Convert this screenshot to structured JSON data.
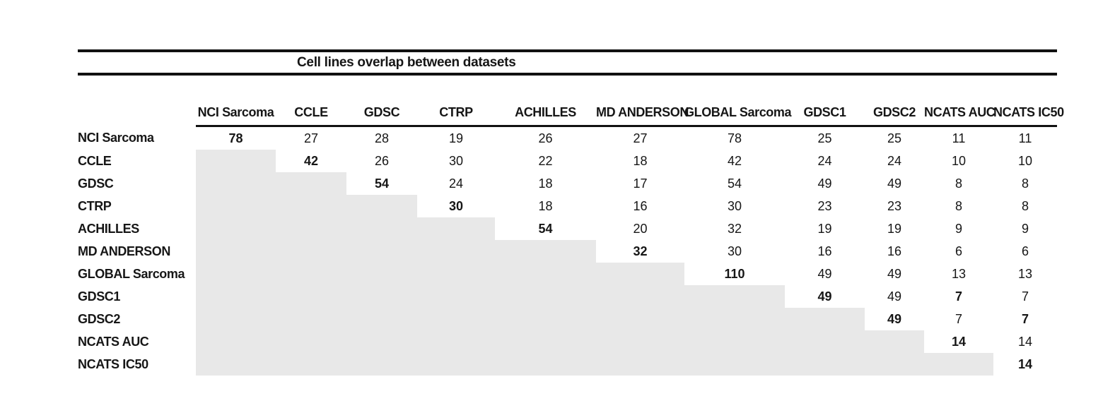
{
  "title": "Cell lines overlap between datasets",
  "colors": {
    "shade": "#e8e8e8",
    "rule": "#111111",
    "text": "#161616"
  },
  "table": {
    "corner_label": "",
    "columns": [
      "NCI Sarcoma",
      "CCLE",
      "GDSC",
      "CTRP",
      "ACHILLES",
      "MD ANDERSON",
      "GLOBAL Sarcoma",
      "GDSC1",
      "GDSC2",
      "NCATS AUC",
      "NCATS IC50"
    ],
    "rows": [
      {
        "label": "NCI Sarcoma",
        "values": [
          "78",
          "27",
          "28",
          "19",
          "26",
          "27",
          "78",
          "25",
          "25",
          "11",
          "11"
        ],
        "bold_cols": [
          0
        ]
      },
      {
        "label": "CCLE",
        "values": [
          "",
          "42",
          "26",
          "30",
          "22",
          "18",
          "42",
          "24",
          "24",
          "10",
          "10"
        ],
        "bold_cols": [
          1
        ]
      },
      {
        "label": "GDSC",
        "values": [
          "",
          "",
          "54",
          "24",
          "18",
          "17",
          "54",
          "49",
          "49",
          "8",
          "8"
        ],
        "bold_cols": [
          2
        ]
      },
      {
        "label": "CTRP",
        "values": [
          "",
          "",
          "",
          "30",
          "18",
          "16",
          "30",
          "23",
          "23",
          "8",
          "8"
        ],
        "bold_cols": [
          3
        ]
      },
      {
        "label": "ACHILLES",
        "values": [
          "",
          "",
          "",
          "",
          "54",
          "20",
          "32",
          "19",
          "19",
          "9",
          "9"
        ],
        "bold_cols": [
          4
        ]
      },
      {
        "label": "MD ANDERSON",
        "values": [
          "",
          "",
          "",
          "",
          "",
          "32",
          "30",
          "16",
          "16",
          "6",
          "6"
        ],
        "bold_cols": [
          5
        ]
      },
      {
        "label": "GLOBAL Sarcoma",
        "values": [
          "",
          "",
          "",
          "",
          "",
          "",
          "110",
          "49",
          "49",
          "13",
          "13"
        ],
        "bold_cols": [
          6
        ]
      },
      {
        "label": "GDSC1",
        "values": [
          "",
          "",
          "",
          "",
          "",
          "",
          "",
          "49",
          "49",
          "7",
          "7"
        ],
        "bold_cols": [
          7,
          9
        ]
      },
      {
        "label": "GDSC2",
        "values": [
          "",
          "",
          "",
          "",
          "",
          "",
          "",
          "",
          "49",
          "7",
          "7"
        ],
        "bold_cols": [
          8,
          10
        ]
      },
      {
        "label": "NCATS AUC",
        "values": [
          "",
          "",
          "",
          "",
          "",
          "",
          "",
          "",
          "",
          "14",
          "14"
        ],
        "bold_cols": [
          9
        ]
      },
      {
        "label": "NCATS IC50",
        "values": [
          "",
          "",
          "",
          "",
          "",
          "",
          "",
          "",
          "",
          "",
          "14"
        ],
        "bold_cols": [
          10
        ]
      }
    ]
  }
}
